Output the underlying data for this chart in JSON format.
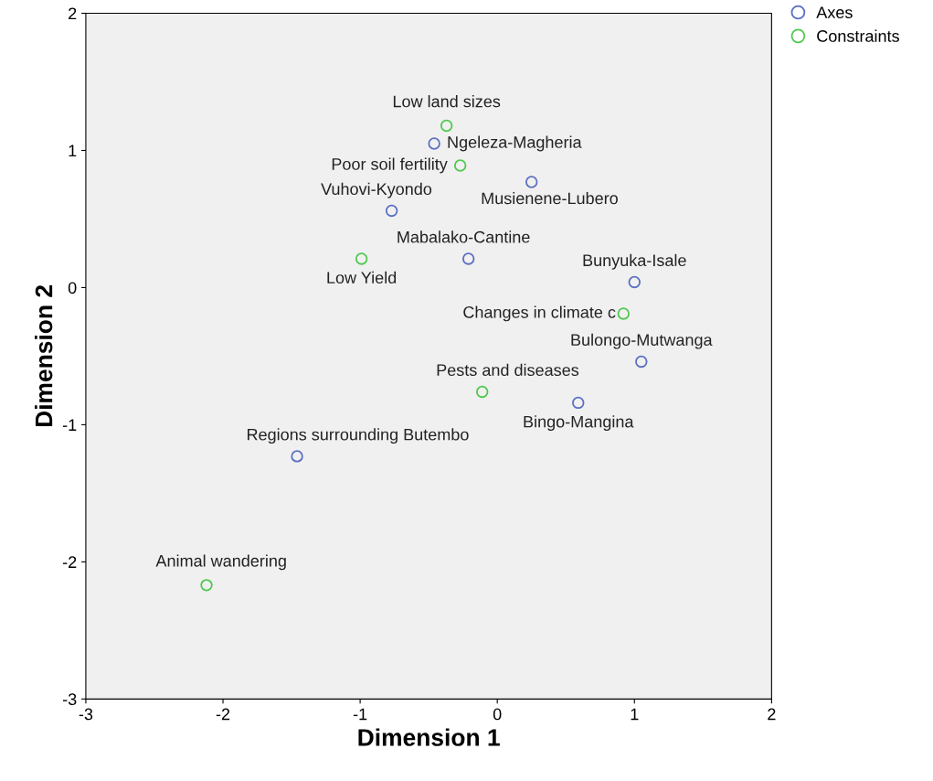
{
  "chart_data": {
    "type": "scatter",
    "xlabel": "Dimension 1",
    "ylabel": "Dimension 2",
    "xlim": [
      -3,
      2
    ],
    "ylim": [
      -3,
      2
    ],
    "xticks": [
      -3,
      -2,
      -1,
      0,
      1,
      2
    ],
    "yticks": [
      -3,
      -2,
      -1,
      0,
      1,
      2
    ],
    "grid": false,
    "legend": "top right",
    "marker": "circle",
    "series": [
      {
        "name": "Axes",
        "color": "#5b6fc4",
        "x": [
          -0.46,
          0.25,
          -0.77,
          -0.21,
          1.0,
          1.05,
          0.59,
          -1.46
        ],
        "values": [
          1.05,
          0.77,
          0.56,
          0.21,
          0.04,
          -0.54,
          -0.84,
          -1.23
        ]
      },
      {
        "name": "Constraints",
        "color": "#4ec94e",
        "x": [
          -0.37,
          -0.27,
          -0.99,
          0.92,
          -0.11,
          -2.12
        ],
        "values": [
          1.18,
          0.89,
          0.21,
          -0.19,
          -0.76,
          -2.17
        ]
      }
    ],
    "annotations": [
      {
        "text": "Ngeleza-Magheria",
        "x": -0.46,
        "y": 1.05
      },
      {
        "text": "Musienene-Lubero",
        "x": 0.25,
        "y": 0.77
      },
      {
        "text": "Vuhovi-Kyondo",
        "x": -0.77,
        "y": 0.56
      },
      {
        "text": "Mabalako-Cantine",
        "x": -0.21,
        "y": 0.21
      },
      {
        "text": "Bunyuka-Isale",
        "x": 1.0,
        "y": 0.04
      },
      {
        "text": "Bulongo-Mutwanga",
        "x": 1.05,
        "y": -0.54
      },
      {
        "text": "Bingo-Mangina",
        "x": 0.59,
        "y": -0.84
      },
      {
        "text": "Regions surrounding Butembo",
        "x": -1.46,
        "y": -1.23
      },
      {
        "text": "Low land sizes",
        "x": -0.37,
        "y": 1.18
      },
      {
        "text": "Poor soil fertility",
        "x": -0.27,
        "y": 0.89
      },
      {
        "text": "Low Yield",
        "x": -0.99,
        "y": 0.21
      },
      {
        "text": "Changes in climate c",
        "x": 0.92,
        "y": -0.19
      },
      {
        "text": "Pests and diseases",
        "x": -0.11,
        "y": -0.76
      },
      {
        "text": "Animal wandering",
        "x": -2.12,
        "y": -2.17
      }
    ]
  }
}
